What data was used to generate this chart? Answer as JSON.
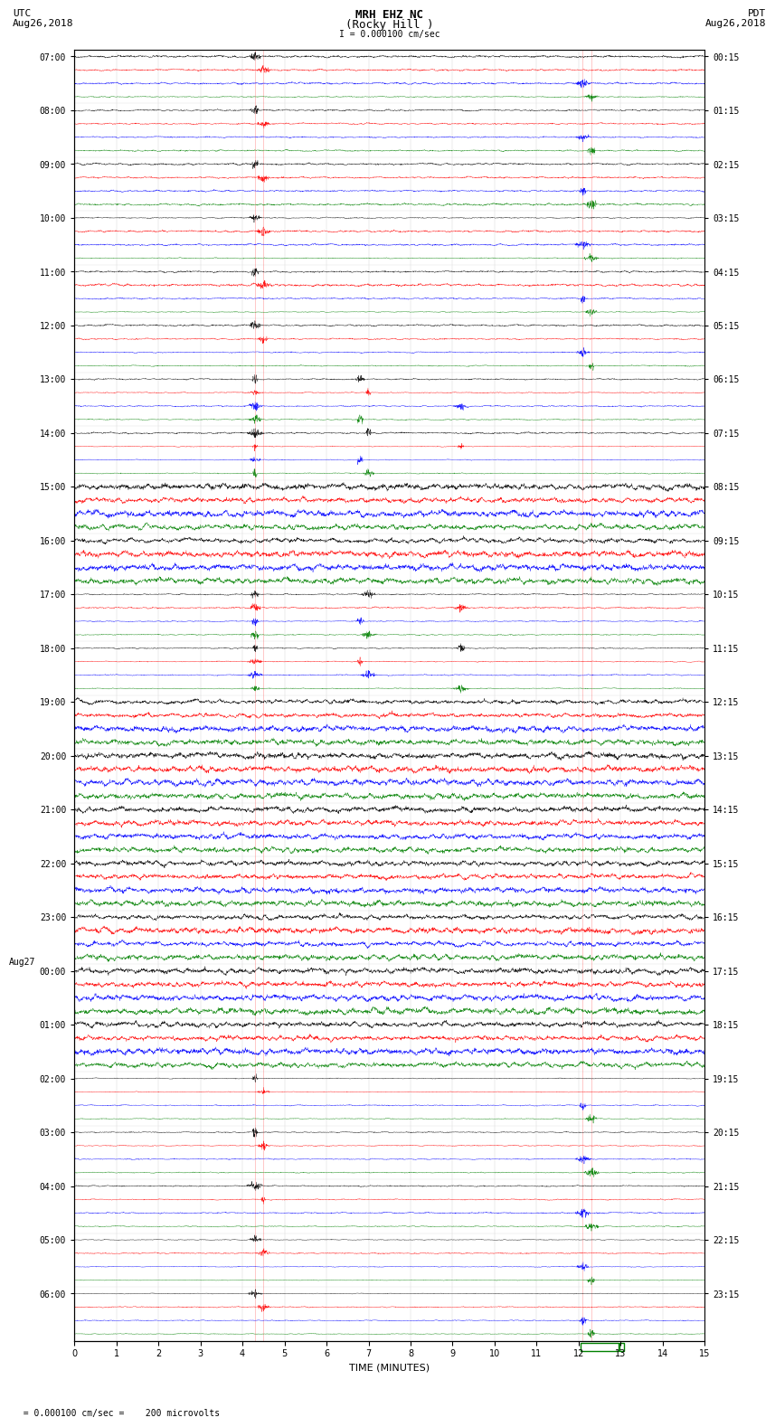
{
  "title_line1": "MRH EHZ NC",
  "title_line2": "(Rocky Hill )",
  "title_scale": "I = 0.000100 cm/sec",
  "left_header": "UTC\nAug26,2018",
  "right_header": "PDT\nAug26,2018",
  "left_date_bottom": "Aug27",
  "xlabel": "TIME (MINUTES)",
  "bottom_label": "  = 0.000100 cm/sec =    200 microvolts",
  "xlim": [
    0,
    15
  ],
  "xticks": [
    0,
    1,
    2,
    3,
    4,
    5,
    6,
    7,
    8,
    9,
    10,
    11,
    12,
    13,
    14,
    15
  ],
  "utc_labels": [
    "07:00",
    "08:00",
    "09:00",
    "10:00",
    "11:00",
    "12:00",
    "13:00",
    "14:00",
    "15:00",
    "16:00",
    "17:00",
    "18:00",
    "19:00",
    "20:00",
    "21:00",
    "22:00",
    "23:00",
    "00:00",
    "01:00",
    "02:00",
    "03:00",
    "04:00",
    "05:00",
    "06:00"
  ],
  "pdt_labels": [
    "00:15",
    "01:15",
    "02:15",
    "03:15",
    "04:15",
    "05:15",
    "06:15",
    "07:15",
    "08:15",
    "09:15",
    "10:15",
    "11:15",
    "12:15",
    "13:15",
    "14:15",
    "15:15",
    "16:15",
    "17:15",
    "18:15",
    "19:15",
    "20:15",
    "21:15",
    "22:15",
    "23:15"
  ],
  "n_rows": 24,
  "traces_per_row": 4,
  "colors": [
    "black",
    "red",
    "blue",
    "green"
  ],
  "bg_color": "white",
  "fig_width": 8.5,
  "fig_height": 16.13,
  "seed": 42
}
